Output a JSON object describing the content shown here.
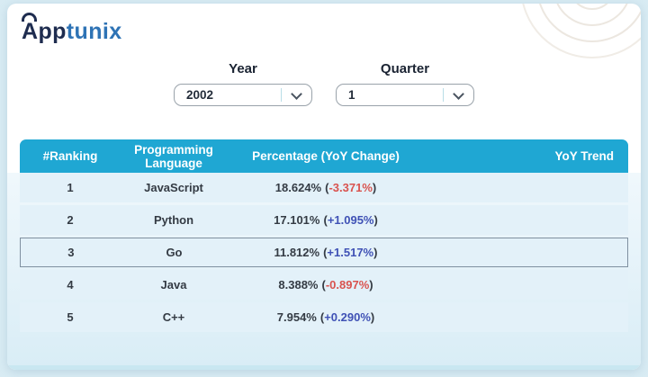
{
  "brand": {
    "name_prefix": "App",
    "name_suffix": "tunix",
    "arc_icon": "arc-over-a-icon",
    "decoration_icon": "concentric-circles-decoration"
  },
  "filters": {
    "year": {
      "label": "Year",
      "value": "2002",
      "chevron_icon": "chevron-down-icon"
    },
    "quarter": {
      "label": "Quarter",
      "value": "1",
      "chevron_icon": "chevron-down-icon"
    }
  },
  "table": {
    "columns": {
      "rank": "#Ranking",
      "language": "Programming Language",
      "percentage": "Percentage (YoY Change)",
      "trend": "YoY Trend"
    },
    "format": {
      "open": "(",
      "close": ")"
    },
    "rows": [
      {
        "rank": "1",
        "language": "JavaScript",
        "percentage": "18.624%",
        "yoy_change": "-3.371%",
        "trend": "",
        "highlighted": false
      },
      {
        "rank": "2",
        "language": "Python",
        "percentage": "17.101%",
        "yoy_change": "+1.095%",
        "trend": "",
        "highlighted": false
      },
      {
        "rank": "3",
        "language": "Go",
        "percentage": "11.812%",
        "yoy_change": "+1.517%",
        "trend": "",
        "highlighted": true
      },
      {
        "rank": "4",
        "language": "Java",
        "percentage": "8.388%",
        "yoy_change": "-0.897%",
        "trend": "",
        "highlighted": false
      },
      {
        "rank": "5",
        "language": "C++",
        "percentage": "7.954%",
        "yoy_change": "+0.290%",
        "trend": "",
        "highlighted": false
      }
    ]
  },
  "colors": {
    "header_bg": "#1FA7D3",
    "positive": "#3F51B5",
    "negative": "#D9534F",
    "brand_navy": "#1E2C4F",
    "brand_blue": "#2E73B5",
    "row_bg": "#E3F1F9",
    "page_bg": "#D8EBF3"
  }
}
